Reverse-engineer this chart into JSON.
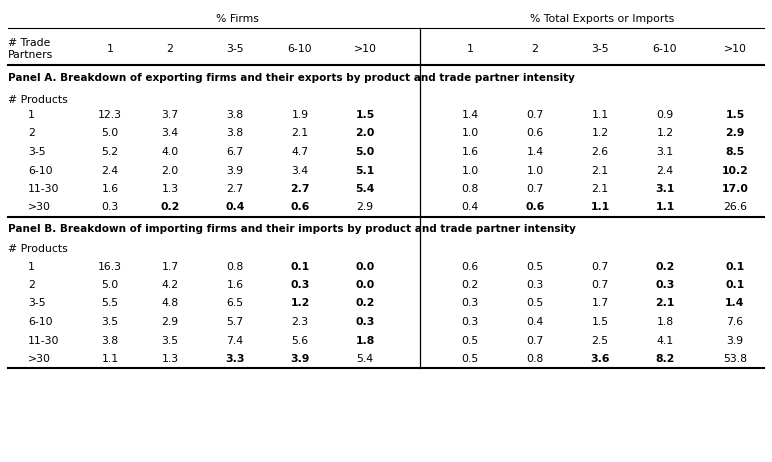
{
  "panel_a_title": "Panel A. Breakdown of exporting firms and their exports by product and trade partner intensity",
  "panel_b_title": "Panel B. Breakdown of importing firms and their imports by product and trade partner intensity",
  "products_label": "# Products",
  "row_labels": [
    "1",
    "2",
    "3-5",
    "6-10",
    "11-30",
    ">30"
  ],
  "panel_a_data": [
    [
      "12.3",
      "3.7",
      "3.8",
      "1.9",
      "1.5",
      "1.4",
      "0.7",
      "1.1",
      "0.9",
      "1.5"
    ],
    [
      "5.0",
      "3.4",
      "3.8",
      "2.1",
      "2.0",
      "1.0",
      "0.6",
      "1.2",
      "1.2",
      "2.9"
    ],
    [
      "5.2",
      "4.0",
      "6.7",
      "4.7",
      "5.0",
      "1.6",
      "1.4",
      "2.6",
      "3.1",
      "8.5"
    ],
    [
      "2.4",
      "2.0",
      "3.9",
      "3.4",
      "5.1",
      "1.0",
      "1.0",
      "2.1",
      "2.4",
      "10.2"
    ],
    [
      "1.6",
      "1.3",
      "2.7",
      "2.7",
      "5.4",
      "0.8",
      "0.7",
      "2.1",
      "3.1",
      "17.0"
    ],
    [
      "0.3",
      "0.2",
      "0.4",
      "0.6",
      "2.9",
      "0.4",
      "0.6",
      "1.1",
      "1.1",
      "26.6"
    ]
  ],
  "panel_a_bold": [
    [
      false,
      false,
      false,
      false,
      true,
      false,
      false,
      false,
      false,
      true
    ],
    [
      false,
      false,
      false,
      false,
      true,
      false,
      false,
      false,
      false,
      true
    ],
    [
      false,
      false,
      false,
      false,
      true,
      false,
      false,
      false,
      false,
      true
    ],
    [
      false,
      false,
      false,
      false,
      true,
      false,
      false,
      false,
      false,
      true
    ],
    [
      false,
      false,
      false,
      true,
      true,
      false,
      false,
      false,
      true,
      true
    ],
    [
      false,
      true,
      true,
      true,
      false,
      false,
      true,
      true,
      true,
      false
    ]
  ],
  "panel_b_data": [
    [
      "16.3",
      "1.7",
      "0.8",
      "0.1",
      "0.0",
      "0.6",
      "0.5",
      "0.7",
      "0.2",
      "0.1"
    ],
    [
      "5.0",
      "4.2",
      "1.6",
      "0.3",
      "0.0",
      "0.2",
      "0.3",
      "0.7",
      "0.3",
      "0.1"
    ],
    [
      "5.5",
      "4.8",
      "6.5",
      "1.2",
      "0.2",
      "0.3",
      "0.5",
      "1.7",
      "2.1",
      "1.4"
    ],
    [
      "3.5",
      "2.9",
      "5.7",
      "2.3",
      "0.3",
      "0.3",
      "0.4",
      "1.5",
      "1.8",
      "7.6"
    ],
    [
      "3.8",
      "3.5",
      "7.4",
      "5.6",
      "1.8",
      "0.5",
      "0.7",
      "2.5",
      "4.1",
      "3.9"
    ],
    [
      "1.1",
      "1.3",
      "3.3",
      "3.9",
      "5.4",
      "0.5",
      "0.8",
      "3.6",
      "8.2",
      "53.8"
    ]
  ],
  "panel_b_bold": [
    [
      false,
      false,
      false,
      true,
      true,
      false,
      false,
      false,
      true,
      true
    ],
    [
      false,
      false,
      false,
      true,
      true,
      false,
      false,
      false,
      true,
      true
    ],
    [
      false,
      false,
      false,
      true,
      true,
      false,
      false,
      false,
      true,
      true
    ],
    [
      false,
      false,
      false,
      false,
      true,
      false,
      false,
      false,
      false,
      false
    ],
    [
      false,
      false,
      false,
      false,
      true,
      false,
      false,
      false,
      false,
      false
    ],
    [
      false,
      false,
      true,
      true,
      false,
      false,
      false,
      true,
      true,
      false
    ]
  ],
  "bg_color": "#ffffff",
  "text_color": "#000000",
  "font_size": 7.8,
  "header_font_size": 7.8,
  "panel_font_size": 7.5
}
